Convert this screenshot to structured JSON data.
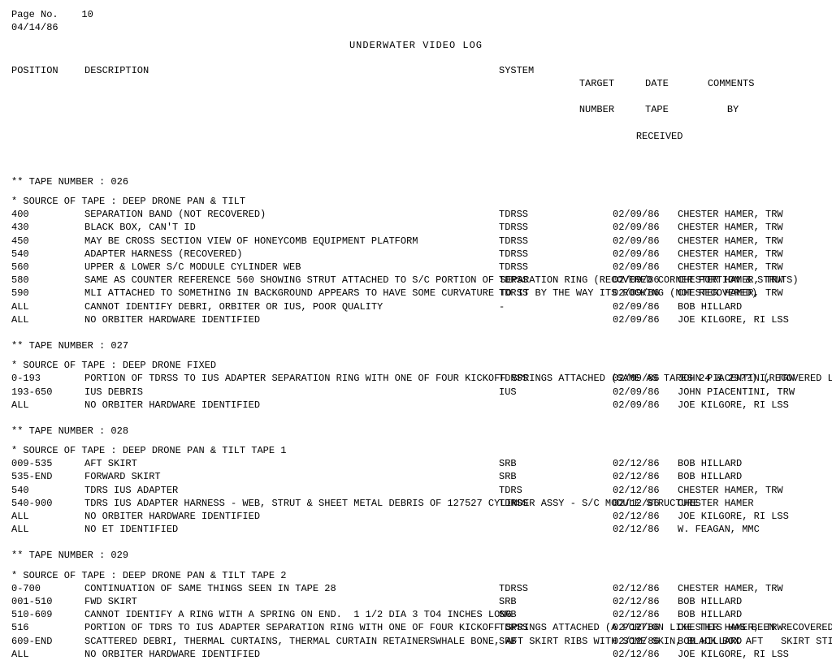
{
  "page_label": "Page No.",
  "page_number": "10",
  "date": "04/14/86",
  "title": "UNDERWATER VIDEO LOG",
  "headers": {
    "position": "POSITION",
    "description": "DESCRIPTION",
    "system": "SYSTEM",
    "target": "TARGET",
    "target2": "NUMBER",
    "date_col": "DATE",
    "date_col2": "TAPE",
    "date_col3": "RECEIVED",
    "comments": "COMMENTS",
    "comments2": "BY"
  },
  "tape_label": "** TAPE NUMBER   :",
  "source_label": "* SOURCE OF TAPE :",
  "tapes": [
    {
      "number": "026",
      "source": "DEEP DRONE PAN & TILT",
      "rows": [
        {
          "pos": "400",
          "desc": "SEPARATION BAND (NOT RECOVERED)",
          "sys": "TDRSS",
          "date": "02/09/86",
          "comm": "CHESTER HAMER, TRW"
        },
        {
          "pos": "430",
          "desc": "BLACK BOX, CAN'T ID",
          "sys": "TDRSS",
          "date": "02/09/86",
          "comm": "CHESTER HAMER, TRW"
        },
        {
          "pos": "450",
          "desc": "MAY BE CROSS SECTION VIEW OF HONEYCOMB EQUIPMENT PLATFORM",
          "sys": "TDRSS",
          "date": "02/09/86",
          "comm": "CHESTER HAMER, TRW"
        },
        {
          "pos": "540",
          "desc": "ADAPTER HARNESS (RECOVERED)",
          "sys": "TDRSS",
          "date": "02/09/86",
          "comm": "CHESTER HAMER, TRW"
        },
        {
          "pos": "560",
          "desc": "UPPER & LOWER S/C MODULE CYLINDER WEB",
          "sys": "TDRSS",
          "date": "02/09/86",
          "comm": "CHESTER HAMER, TRW"
        },
        {
          "pos": "580",
          "desc": "SAME AS COUNTER REFERENCE 560 SHOWING STRUT ATTACHED TO S/C PORTION OF SEPARATION RING (RECOVERED CORNER PORTION & STRUTS)",
          "sys": "TDRSS",
          "date": "02/09/86",
          "comm": "CHESTER HAMER, TRW"
        },
        {
          "pos": "590",
          "desc": "MLI ATTACHED TO SOMETHING IN BACKGROUND APPEARS TO HAVE SOME CURVATURE TO IT BY THE WAY ITS ROCKING (NOT RECOVERED)",
          "sys": "TDRSS",
          "date": "02/09/86",
          "comm": "CHESTER HAMER, TRW"
        },
        {
          "pos": "ALL",
          "desc": "CANNOT IDENTIFY DEBRI, ORBITER OR IUS, POOR QUALITY",
          "sys": "-",
          "date": "02/09/86",
          "comm": "BOB HILLARD"
        },
        {
          "pos": "ALL",
          "desc": "NO ORBITER HARDWARE IDENTIFIED",
          "sys": "",
          "date": "02/09/86",
          "comm": "JOE KILGORE, RI LSS"
        }
      ]
    },
    {
      "number": "027",
      "source": "DEEP DRONE FIXED",
      "rows": [
        {
          "pos": "0-193",
          "desc": "PORTION OF TDRSS TO IUS ADAPTER SEPARATION RING WITH ONE OF FOUR KICKOFF SPRINGS ATTACHED (SAME AS TAPES 24 & 29??) (RECOVERED LESS SPRINGO",
          "sys": "TDRSS",
          "date": "02/09/86",
          "comm": "JOHN PIACENTINI, TRW"
        },
        {
          "pos": "193-650",
          "desc": "IUS DEBRIS",
          "sys": "IUS",
          "date": "02/09/86",
          "comm": "JOHN PIACENTINI, TRW"
        },
        {
          "pos": "ALL",
          "desc": "NO ORBITER HARDWARE IDENTIFIED",
          "sys": "",
          "date": "02/09/86",
          "comm": "JOE KILGORE, RI LSS"
        }
      ]
    },
    {
      "number": "028",
      "source": "DEEP DRONE PAN & TILT TAPE 1",
      "rows": [
        {
          "pos": "009-535",
          "desc": "AFT SKIRT",
          "sys": "SRB",
          "date": "02/12/86",
          "comm": "BOB HILLARD"
        },
        {
          "pos": "535-END",
          "desc": "FORWARD SKIRT",
          "sys": "SRB",
          "date": "02/12/86",
          "comm": "BOB HILLARD"
        },
        {
          "pos": "540",
          "desc": "TDRS IUS ADAPTER",
          "sys": "TDRS",
          "date": "02/12/86",
          "comm": "CHESTER HAMER, TRW"
        },
        {
          "pos": "540-900",
          "desc": "TDRS IUS ADAPTER HARNESS - WEB, STRUT & SHEET METAL DEBRIS OF 127527 CYLINDER ASSY - S/C MODULE STRUCTURE",
          "sys": "TDRSS",
          "date": "02/12/86",
          "comm": "CHESTER HAMER"
        },
        {
          "pos": "ALL",
          "desc": "NO ORBITER HARDWARE IDENTIFIED",
          "sys": "",
          "date": "02/12/86",
          "comm": "JOE KILGORE, RI LSS"
        },
        {
          "pos": "ALL",
          "desc": "NO ET IDENTIFIED",
          "sys": "",
          "date": "02/12/86",
          "comm": "W. FEAGAN, MMC"
        }
      ]
    },
    {
      "number": "029",
      "source": "DEEP DRONE PAN & TILT TAPE 2",
      "rows": [
        {
          "pos": "0-700",
          "desc": "CONTINUATION OF SAME THINGS SEEN IN TAPE 28",
          "sys": "TDRSS",
          "date": "02/12/86",
          "comm": "CHESTER HAMER, TRW"
        },
        {
          "pos": "001-510",
          "desc": "FWD SKIRT",
          "sys": "SRB",
          "date": "02/12/86",
          "comm": "BOB HILLARD"
        },
        {
          "pos": "510-609",
          "desc": "CANNOT IDENTIFY A RING WITH A SPRING ON END.  1 1/2 DIA 3 TO4 INCHES LONG",
          "sys": "SRB",
          "date": "02/12/86",
          "comm": "BOB HILLARD"
        },
        {
          "pos": "516",
          "desc": "PORTION OF TDRS TO IUS ADAPTER SEPARATION RING WITH ONE OF FOUR KICKOFF SPRINGS ATTACHED (A PORTION LIKE THIS HAS BEEN RECOVERED BUT SPRING WAS NOT WITH IT)",
          "sys": "TDRSS",
          "date": "02/12/86",
          "comm": "CHESTER HAMER, TRW"
        },
        {
          "pos": "609-END",
          "desc": "SCATTERED DEBRI, THERMAL CURTAINS, THERMAL CURTAIN RETAINERSWHALE BONE, AFT SKIRT RIBS WITH SOME SKIN, BLACK BOX AFT   SKIRT STIFFENERS OR FWD??",
          "sys": "SRB",
          "date": "02/12/86",
          "comm": "BOB HILLARD"
        },
        {
          "pos": "ALL",
          "desc": "NO ORBITER HARDWARE IDENTIFIED",
          "sys": "",
          "date": "02/12/86",
          "comm": "JOE KILGORE, RI LSS"
        }
      ]
    }
  ]
}
